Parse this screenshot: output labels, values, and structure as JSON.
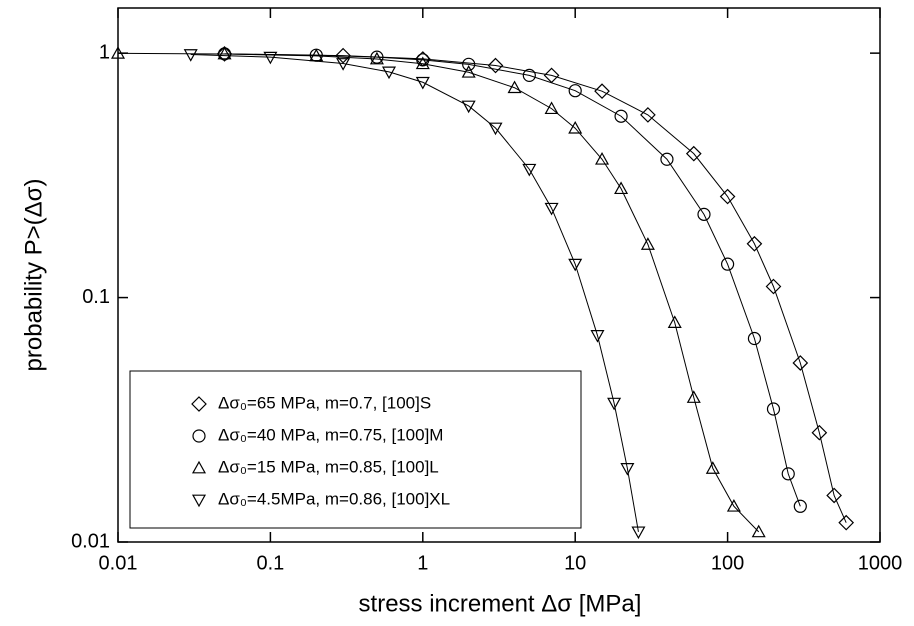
{
  "chart_data": {
    "type": "scatter",
    "xlabel": "stress increment Δσ [MPa]",
    "ylabel": "probability P>(Δσ)",
    "xlog": true,
    "ylog": true,
    "xlim": [
      0.01,
      1000
    ],
    "ylim": [
      0.01,
      1.53
    ],
    "xticks": [
      0.01,
      0.1,
      1,
      10,
      100,
      1000
    ],
    "yticks": [
      0.01,
      0.1,
      1
    ],
    "legend": "bottom-left",
    "series": [
      {
        "name": "Δσ₀=65 MPa, m=0.7,   [100]S",
        "color": "#000000",
        "marker": "diamond",
        "x": [
          0.05,
          0.3,
          1,
          3,
          7,
          15,
          30,
          60,
          100,
          150,
          200,
          300,
          400,
          500,
          600
        ],
        "values": [
          0.993,
          0.977,
          0.947,
          0.89,
          0.811,
          0.699,
          0.559,
          0.388,
          0.259,
          0.166,
          0.111,
          0.054,
          0.028,
          0.0155,
          0.012
        ]
      },
      {
        "name": "Δσ₀=40 MPa, m=0.75, [100]M",
        "color": "#000000",
        "marker": "circle",
        "x": [
          0.05,
          0.2,
          0.5,
          1,
          2,
          5,
          10,
          20,
          40,
          70,
          100,
          150,
          200,
          250,
          300
        ],
        "values": [
          0.993,
          0.981,
          0.963,
          0.939,
          0.9,
          0.811,
          0.702,
          0.552,
          0.368,
          0.219,
          0.137,
          0.068,
          0.035,
          0.019,
          0.014
        ]
      },
      {
        "name": "Δσ₀=15 MPa, m=0.85, [100]L",
        "color": "#000000",
        "marker": "triangle-up",
        "x": [
          0.01,
          0.05,
          0.2,
          0.5,
          1,
          2,
          4,
          7,
          10,
          15,
          20,
          30,
          45,
          60,
          80,
          110,
          160
        ],
        "values": [
          0.998,
          0.992,
          0.975,
          0.946,
          0.905,
          0.835,
          0.722,
          0.593,
          0.493,
          0.368,
          0.279,
          0.165,
          0.079,
          0.039,
          0.02,
          0.014,
          0.011
        ]
      },
      {
        "name": "Δσ₀=4.5MPa, m=0.86, [100]XL",
        "color": "#000000",
        "marker": "triangle-down",
        "x": [
          0.03,
          0.1,
          0.3,
          0.6,
          1,
          2,
          3,
          5,
          7,
          10,
          14,
          18,
          22,
          26
        ],
        "values": [
          0.987,
          0.963,
          0.907,
          0.838,
          0.76,
          0.608,
          0.494,
          0.335,
          0.232,
          0.137,
          0.07,
          0.037,
          0.02,
          0.011
        ]
      }
    ]
  }
}
